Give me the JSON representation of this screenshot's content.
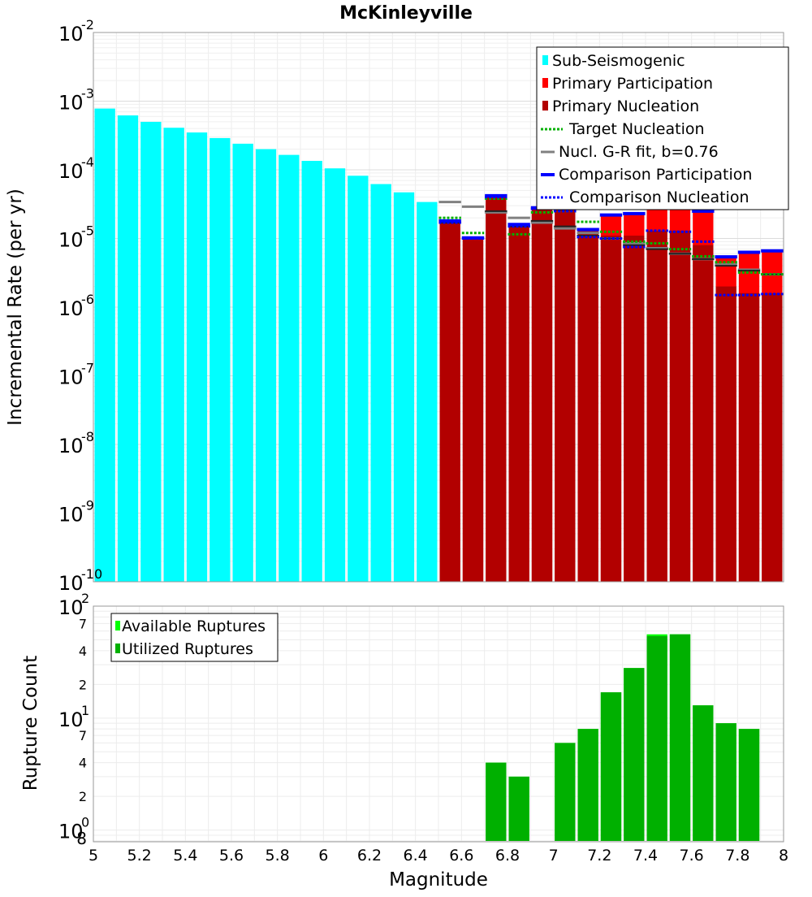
{
  "chart_data": [
    {
      "type": "bar",
      "title": "McKinleyville",
      "xlabel": "",
      "ylabel": "Incremental Rate (per yr)",
      "yscale": "log",
      "ylim": [
        1e-10,
        0.01
      ],
      "xlim": [
        5,
        8
      ],
      "bin_width": 0.1,
      "y_tick_labels": [
        {
          "base": "10",
          "exp": "-10",
          "value": 1e-10
        },
        {
          "base": "10",
          "exp": "-9",
          "value": 1e-09
        },
        {
          "base": "10",
          "exp": "-8",
          "value": 1e-08
        },
        {
          "base": "10",
          "exp": "-7",
          "value": 1e-07
        },
        {
          "base": "10",
          "exp": "-6",
          "value": 1e-06
        },
        {
          "base": "10",
          "exp": "-5",
          "value": 1e-05
        },
        {
          "base": "10",
          "exp": "-4",
          "value": 0.0001
        },
        {
          "base": "10",
          "exp": "-3",
          "value": 0.001
        },
        {
          "base": "10",
          "exp": "-2",
          "value": 0.01
        }
      ],
      "legend": {
        "position": "top-right",
        "entries": [
          {
            "label": "Sub-Seismogenic",
            "color": "#00ffff",
            "style": "bar"
          },
          {
            "label": "Primary Participation",
            "color": "#ff0000",
            "style": "bar"
          },
          {
            "label": "Primary Nucleation",
            "color": "#b20000",
            "style": "bar"
          },
          {
            "label": "Target Nucleation",
            "color": "#00b000",
            "style": "dotted"
          },
          {
            "label": "Nucl. G-R fit, b=0.76",
            "color": "#808080",
            "style": "solid"
          },
          {
            "label": "Comparison Participation",
            "color": "#0000ff",
            "style": "solid"
          },
          {
            "label": "Comparison Nucleation",
            "color": "#0000ff",
            "style": "dotted"
          }
        ]
      },
      "colors": {
        "sub_seismogenic": "#00ffff",
        "primary_participation": "#ff0000",
        "primary_nucleation": "#b20000",
        "target_nucleation": "#00b000",
        "gr_fit": "#808080",
        "comparison_participation": "#0000ff",
        "comparison_nucleation": "#0000ff",
        "nucleation_marker": "#202020"
      },
      "sub_seismogenic": {
        "mags": [
          5.05,
          5.15,
          5.25,
          5.35,
          5.45,
          5.55,
          5.65,
          5.75,
          5.85,
          5.95,
          6.05,
          6.15,
          6.25,
          6.35,
          6.45
        ],
        "values": [
          0.00078,
          0.00062,
          0.0005,
          0.00041,
          0.00035,
          0.00029,
          0.00024,
          0.0002,
          0.000165,
          0.000135,
          0.000105,
          8.2e-05,
          6.2e-05,
          4.7e-05,
          3.4e-05
        ]
      },
      "mags": [
        6.55,
        6.65,
        6.75,
        6.85,
        6.95,
        7.05,
        7.15,
        7.25,
        7.35,
        7.45,
        7.55,
        7.65,
        7.75,
        7.85,
        7.95
      ],
      "series": [
        {
          "name": "Primary Participation",
          "values": [
            1.7e-05,
            1e-05,
            4e-05,
            1.55e-05,
            2.7e-05,
            2.7e-05,
            1.3e-05,
            2.1e-05,
            2.2e-05,
            3.9e-05,
            3.3e-05,
            2.4e-05,
            5.2e-06,
            6.1e-06,
            6.4e-06
          ]
        },
        {
          "name": "Primary Nucleation",
          "values": [
            1.7e-05,
            1e-05,
            4e-05,
            1.55e-05,
            2.7e-05,
            2.7e-05,
            1.3e-05,
            1.1e-05,
            1.1e-05,
            1.3e-05,
            1.3e-05,
            8e-06,
            2e-06,
            1.6e-06,
            1.6e-06
          ]
        },
        {
          "name": "Target Nucleation",
          "values": [
            2e-05,
            1.2e-05,
            3.8e-05,
            1.15e-05,
            2.4e-05,
            2.5e-05,
            1.75e-05,
            1.25e-05,
            9e-06,
            8.5e-06,
            7e-06,
            5.5e-06,
            4.5e-06,
            3.2e-06,
            3e-06
          ]
        },
        {
          "name": "Nucl. G-R fit, b=0.76",
          "values": [
            3.4e-05,
            2.9e-05,
            2.4e-05,
            2e-05,
            1.7e-05,
            1.4e-05,
            1.2e-05,
            1e-05,
            8.5e-06,
            7.2e-06,
            6e-06,
            5e-06,
            4.2e-06,
            3.5e-06,
            3e-06
          ]
        },
        {
          "name": "Comparison Participation",
          "values": [
            1.8e-05,
            1.02e-05,
            4.2e-05,
            1.6e-05,
            2.8e-05,
            2.8e-05,
            1.35e-05,
            2.2e-05,
            2.3e-05,
            4e-05,
            3.4e-05,
            2.5e-05,
            5.4e-06,
            6.3e-06,
            6.6e-06
          ]
        },
        {
          "name": "Comparison Nucleation",
          "values": [
            1.7e-05,
            1e-05,
            4e-05,
            1.5e-05,
            2.7e-05,
            2.5e-05,
            1.05e-05,
            1e-05,
            7.5e-06,
            1.3e-05,
            1.25e-05,
            9e-06,
            1.5e-06,
            1.5e-06,
            1.55e-06
          ]
        },
        {
          "name": "Nucleation Marker",
          "values": [
            1.7e-05,
            1e-05,
            2.5e-05,
            1.5e-05,
            1.8e-05,
            1.5e-05,
            1.1e-05,
            1e-05,
            8e-06,
            7e-06,
            6e-06,
            5e-06,
            4e-06,
            3.4e-06,
            3e-06
          ]
        }
      ]
    },
    {
      "type": "bar",
      "title": "",
      "xlabel": "Magnitude",
      "ylabel": "Rupture Count",
      "yscale": "log",
      "ylim": [
        0.8,
        100
      ],
      "xlim": [
        5,
        8
      ],
      "x_ticks": [
        "5",
        "5.2",
        "5.4",
        "5.6",
        "5.8",
        "6",
        "6.2",
        "6.4",
        "6.6",
        "6.8",
        "7",
        "7.2",
        "7.4",
        "7.6",
        "7.8",
        "8"
      ],
      "y_major_ticks": [
        {
          "base": "10",
          "exp": "0",
          "value": 1
        },
        {
          "base": "10",
          "exp": "1",
          "value": 10
        },
        {
          "base": "10",
          "exp": "2",
          "value": 100
        }
      ],
      "y_minor_ticks": [
        {
          "label": "8",
          "value": 0.8
        },
        {
          "label": "2",
          "value": 2
        },
        {
          "label": "4",
          "value": 4
        },
        {
          "label": "7",
          "value": 7
        },
        {
          "label": "2",
          "value": 20
        },
        {
          "label": "4",
          "value": 40
        },
        {
          "label": "7",
          "value": 70
        }
      ],
      "legend": {
        "position": "top-left",
        "entries": [
          {
            "label": "Available Ruptures",
            "color": "#00ff00"
          },
          {
            "label": "Utilized Ruptures",
            "color": "#00b000"
          }
        ]
      },
      "mags": [
        6.75,
        6.85,
        7.05,
        7.15,
        7.25,
        7.35,
        7.45,
        7.55,
        7.65,
        7.75,
        7.85
      ],
      "series": [
        {
          "name": "Available Ruptures",
          "values": [
            4,
            3,
            6,
            8,
            17,
            28,
            56,
            56,
            13,
            9,
            8
          ]
        },
        {
          "name": "Utilized Ruptures",
          "values": [
            4,
            3,
            6,
            8,
            17,
            28,
            54,
            56,
            13,
            9,
            8
          ]
        }
      ]
    }
  ]
}
